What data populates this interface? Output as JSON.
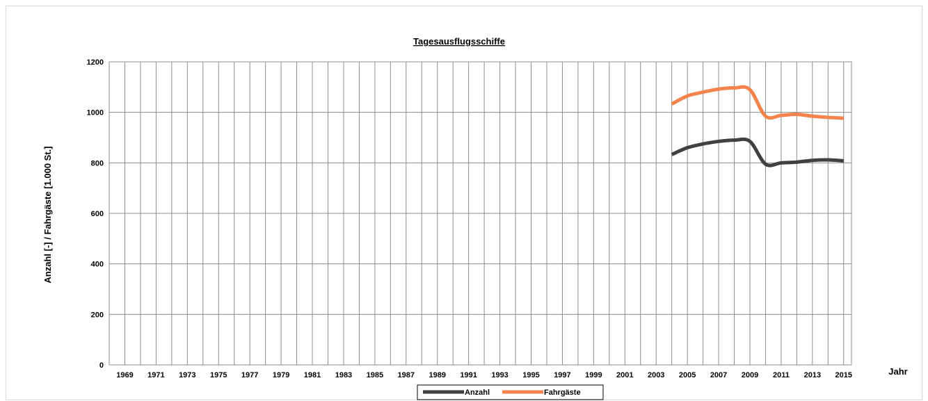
{
  "chart_data": {
    "type": "line",
    "title": "Tagesausflugsschiffe",
    "ylabel": "Anzahl [-] / Fahrgäste [1.000 St.]",
    "xlabel": "Jahr",
    "ylim": [
      0,
      1200
    ],
    "yticks": [
      0,
      200,
      400,
      600,
      800,
      1000,
      1200
    ],
    "xlim": [
      1968,
      2015.5
    ],
    "xticks": [
      "1969",
      "1971",
      "1973",
      "1975",
      "1977",
      "1979",
      "1981",
      "1983",
      "1985",
      "1987",
      "1989",
      "1991",
      "1993",
      "1995",
      "1997",
      "1999",
      "2001",
      "2003",
      "2005",
      "2007",
      "2009",
      "2011",
      "2013",
      "2015"
    ],
    "grid": true,
    "legend": "bottom",
    "series": [
      {
        "name": "Anzahl",
        "color": "#404040",
        "x": [
          2004,
          2005,
          2006,
          2007,
          2008,
          2009,
          2010,
          2011,
          2012,
          2013,
          2014,
          2015
        ],
        "y": [
          833,
          860,
          875,
          885,
          890,
          885,
          795,
          800,
          803,
          810,
          812,
          808
        ]
      },
      {
        "name": "Fahrgäste",
        "color": "#f5844c",
        "x": [
          2004,
          2005,
          2006,
          2007,
          2008,
          2009,
          2010,
          2011,
          2012,
          2013,
          2014,
          2015
        ],
        "y": [
          1033,
          1065,
          1080,
          1092,
          1097,
          1090,
          985,
          988,
          992,
          985,
          980,
          977
        ]
      }
    ]
  }
}
